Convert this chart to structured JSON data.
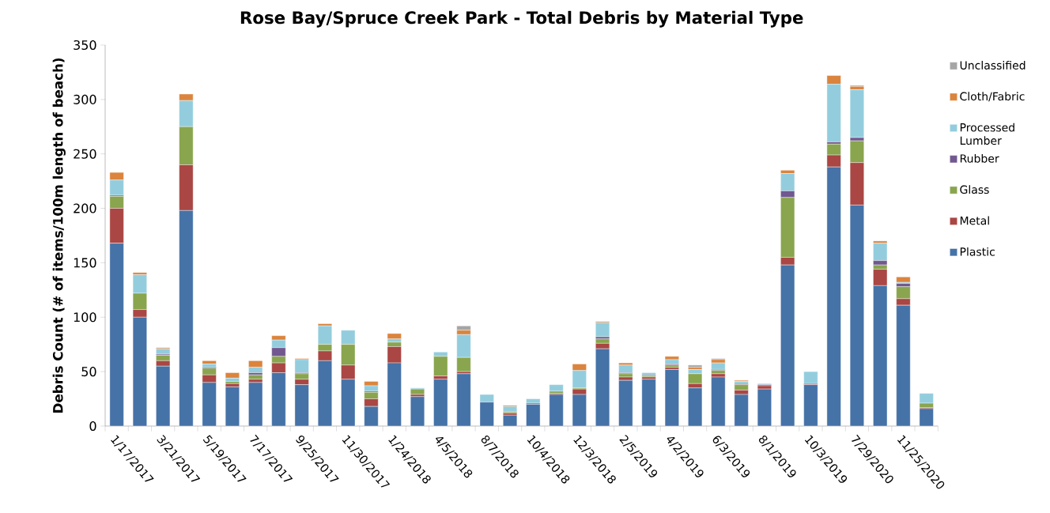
{
  "chart_data": {
    "type": "bar",
    "stacked": true,
    "title": "Rose Bay/Spruce Creek Park - Total Debris by Material Type",
    "ylabel": "Debris Count (# of items/100m length of beach)",
    "categories": [
      "1/17/2017",
      null,
      "3/21/2017",
      null,
      "5/19/2017",
      null,
      "7/17/2017",
      null,
      "9/25/2017",
      null,
      "11/30/2017",
      null,
      "1/24/2018",
      null,
      "4/5/2018",
      null,
      "8/7/2018",
      null,
      "10/4/2018",
      null,
      "12/3/2018",
      null,
      "2/5/2019",
      null,
      "4/2/2019",
      null,
      "6/3/2019",
      null,
      "8/1/2019",
      null,
      "10/3/2019",
      null,
      "7/29/2020",
      null,
      "11/25/2020",
      null
    ],
    "series": [
      {
        "name": "Plastic",
        "color": "#4572a7",
        "values": [
          168,
          100,
          55,
          198,
          40,
          36,
          40,
          49,
          38,
          60,
          43,
          18,
          58,
          27,
          43,
          48,
          22,
          10,
          20,
          29,
          29,
          71,
          42,
          43,
          52,
          35,
          45,
          29,
          34,
          148,
          38,
          238,
          203,
          129,
          111,
          16
        ]
      },
      {
        "name": "Metal",
        "color": "#aa4643",
        "values": [
          32,
          7,
          5,
          42,
          7,
          3,
          3,
          9,
          5,
          9,
          13,
          7,
          15,
          2,
          3,
          2,
          null,
          2,
          1,
          1,
          5,
          5,
          3,
          2,
          2,
          4,
          3,
          4,
          3,
          7,
          1,
          11,
          39,
          15,
          6,
          1
        ]
      },
      {
        "name": "Glass",
        "color": "#89a54e",
        "values": [
          11,
          15,
          5,
          35,
          6,
          2,
          4,
          6,
          5,
          6,
          19,
          6,
          4,
          5,
          18,
          13,
          0,
          1,
          0,
          2,
          1,
          4,
          3,
          1,
          2,
          9,
          3,
          5,
          0,
          55,
          0,
          10,
          20,
          4,
          11,
          4
        ]
      },
      {
        "name": "Rubber",
        "color": "#71588f",
        "values": [
          1,
          0,
          1,
          0,
          1,
          0,
          2,
          8,
          1,
          0,
          0,
          1,
          0,
          0,
          0,
          0,
          0,
          0,
          0,
          0,
          0,
          2,
          1,
          1,
          1,
          0,
          1,
          1,
          1,
          6,
          0,
          2,
          3,
          4,
          3,
          0
        ]
      },
      {
        "name": "Processed Lumber",
        "color": "#93cddd",
        "values": [
          14,
          17,
          5,
          24,
          3,
          3,
          5,
          7,
          12,
          17,
          13,
          5,
          3,
          1,
          4,
          21,
          7,
          5,
          4,
          6,
          16,
          13,
          7,
          2,
          4,
          4,
          6,
          2,
          1,
          16,
          11,
          53,
          44,
          16,
          1,
          9
        ]
      },
      {
        "name": "Cloth/Fabric",
        "color": "#db843d",
        "values": [
          7,
          2,
          1,
          6,
          3,
          5,
          6,
          4,
          1,
          2,
          0,
          4,
          5,
          null,
          0,
          4,
          0,
          1,
          0,
          0,
          6,
          1,
          2,
          0,
          3,
          2,
          3,
          1,
          0,
          3,
          0,
          8,
          3,
          2,
          5,
          0
        ]
      },
      {
        "name": "Unclassified",
        "color": "#a5a5a5",
        "values": [
          0,
          0,
          0,
          0,
          0,
          0,
          0,
          0,
          0,
          0,
          0,
          0,
          0,
          0,
          0,
          4,
          0,
          0,
          0,
          0,
          0,
          0,
          0,
          0,
          0,
          2,
          1,
          0,
          0,
          0,
          0,
          0,
          1,
          0,
          0,
          0
        ]
      }
    ],
    "ylim": [
      0,
      350
    ],
    "yticks": [
      0,
      50,
      100,
      150,
      200,
      250,
      300,
      350
    ],
    "legend": "right"
  }
}
